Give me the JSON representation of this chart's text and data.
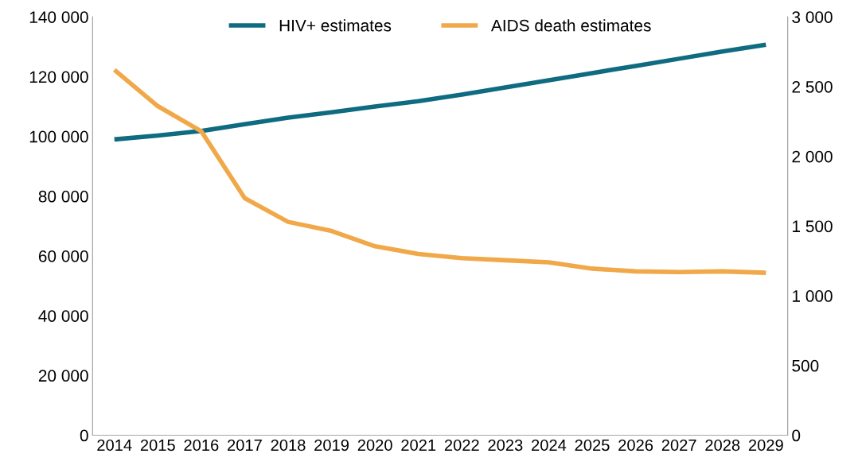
{
  "chart_data": {
    "type": "line",
    "categories": [
      "2014",
      "2015",
      "2016",
      "2017",
      "2018",
      "2019",
      "2020",
      "2021",
      "2022",
      "2023",
      "2024",
      "2025",
      "2026",
      "2027",
      "2028",
      "2029"
    ],
    "series": [
      {
        "name": "HIV+ estimates",
        "color": "#0e6b80",
        "values": [
          99000,
          100300,
          101800,
          104100,
          106300,
          108100,
          110000,
          111800,
          114000,
          116400,
          118800,
          121200,
          123600,
          126000,
          128400,
          130700
        ]
      },
      {
        "name": "AIDS death estimates",
        "color": "#f0a848",
        "axis": "y2",
        "values": [
          2620,
          2360,
          2180,
          1700,
          1530,
          1465,
          1355,
          1300,
          1270,
          1255,
          1240,
          1195,
          1175,
          1170,
          1175,
          1165
        ]
      }
    ],
    "ylim": [
      0,
      140000
    ],
    "yticks": [
      {
        "value": 0,
        "label": "0"
      },
      {
        "value": 20000,
        "label": "20 000"
      },
      {
        "value": 40000,
        "label": "40 000"
      },
      {
        "value": 60000,
        "label": "60 000"
      },
      {
        "value": 80000,
        "label": "80 000"
      },
      {
        "value": 100000,
        "label": "100 000"
      },
      {
        "value": 120000,
        "label": "120 000"
      },
      {
        "value": 140000,
        "label": "140 000"
      }
    ],
    "y2lim": [
      0,
      3000
    ],
    "y2ticks": [
      {
        "value": 0,
        "label": "0"
      },
      {
        "value": 500,
        "label": "500"
      },
      {
        "value": 1000,
        "label": "1 000"
      },
      {
        "value": 1500,
        "label": "1 500"
      },
      {
        "value": 2000,
        "label": "2 000"
      },
      {
        "value": 2500,
        "label": "2 500"
      },
      {
        "value": 3000,
        "label": "3 000"
      }
    ],
    "grid": false,
    "legend": "top",
    "marker": "none",
    "line_style": "solid"
  }
}
